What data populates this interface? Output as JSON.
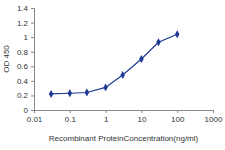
{
  "chart_data": {
    "type": "line",
    "x": [
      0.03,
      0.1,
      0.3,
      1,
      3,
      10,
      30,
      100
    ],
    "values": [
      0.22,
      0.23,
      0.24,
      0.31,
      0.48,
      0.7,
      0.93,
      1.04
    ],
    "color": "#1f3a93",
    "marker": "diamond",
    "log": "x",
    "xlim": [
      0.01,
      1000
    ],
    "xticks": [
      0.01,
      0.1,
      1,
      10,
      100,
      1000
    ],
    "ylim": [
      0,
      1.4
    ],
    "yticks": [
      0,
      0.2,
      0.4,
      0.6,
      0.8,
      1,
      1.2,
      1.4
    ],
    "x_label": "Recombinant ProteinConcentration(ng/ml)",
    "y_label": "OD 450",
    "grid": false
  }
}
